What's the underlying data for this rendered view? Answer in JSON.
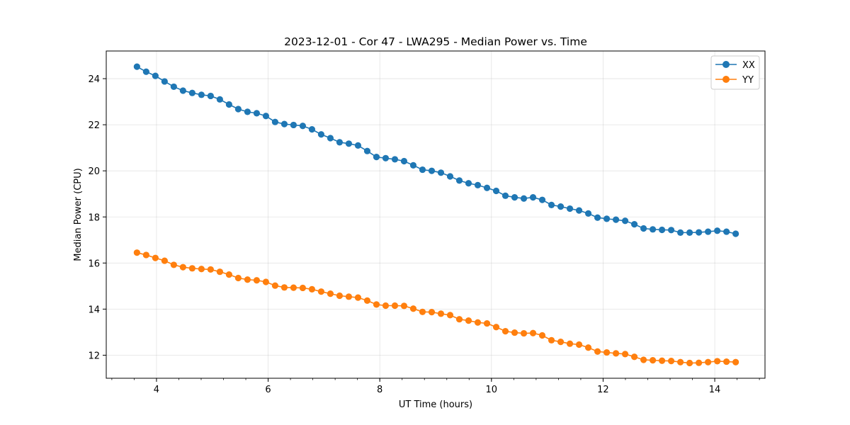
{
  "chart_data": {
    "type": "line",
    "title": "2023-12-01 - Cor 47 - LWA295 - Median Power vs. Time",
    "xlabel": "UT Time (hours)",
    "ylabel": "Median Power (CPU)",
    "xlim": [
      3.1,
      14.9
    ],
    "ylim": [
      11.0,
      25.2
    ],
    "xticks": [
      4,
      6,
      8,
      10,
      12,
      14
    ],
    "yticks": [
      12,
      14,
      16,
      18,
      20,
      22,
      24
    ],
    "x_minor_step": 0.4,
    "grid": true,
    "legend_position": "top-right",
    "x": [
      3.65,
      3.815,
      3.98,
      4.145,
      4.31,
      4.475,
      4.64,
      4.805,
      4.97,
      5.135,
      5.3,
      5.465,
      5.63,
      5.795,
      5.96,
      6.125,
      6.29,
      6.455,
      6.62,
      6.785,
      6.95,
      7.115,
      7.28,
      7.445,
      7.61,
      7.775,
      7.94,
      8.105,
      8.27,
      8.435,
      8.6,
      8.765,
      8.93,
      9.095,
      9.26,
      9.425,
      9.59,
      9.755,
      9.92,
      10.085,
      10.25,
      10.415,
      10.58,
      10.745,
      10.91,
      11.075,
      11.24,
      11.405,
      11.57,
      11.735,
      11.9,
      12.065,
      12.23,
      12.395,
      12.56,
      12.725,
      12.89,
      13.055,
      13.22,
      13.385,
      13.55,
      13.715,
      13.88,
      14.045,
      14.21,
      14.375
    ],
    "series": [
      {
        "name": "XX",
        "color": "#1f77b4",
        "values": [
          24.52,
          24.3,
          24.12,
          23.88,
          23.65,
          23.48,
          23.38,
          23.3,
          23.25,
          23.1,
          22.88,
          22.68,
          22.56,
          22.5,
          22.38,
          22.12,
          22.03,
          21.99,
          21.95,
          21.8,
          21.58,
          21.42,
          21.24,
          21.18,
          21.1,
          20.86,
          20.6,
          20.55,
          20.5,
          20.42,
          20.24,
          20.05,
          20.0,
          19.92,
          19.76,
          19.58,
          19.46,
          19.38,
          19.26,
          19.13,
          18.92,
          18.85,
          18.8,
          18.85,
          18.74,
          18.52,
          18.45,
          18.36,
          18.28,
          18.15,
          17.97,
          17.92,
          17.88,
          17.83,
          17.68,
          17.5,
          17.46,
          17.44,
          17.43,
          17.32,
          17.32,
          17.33,
          17.36,
          17.4,
          17.36,
          17.27
        ]
      },
      {
        "name": "YY",
        "color": "#ff7f0e",
        "values": [
          16.45,
          16.35,
          16.22,
          16.1,
          15.92,
          15.82,
          15.77,
          15.74,
          15.72,
          15.62,
          15.5,
          15.35,
          15.28,
          15.25,
          15.18,
          15.02,
          14.94,
          14.93,
          14.92,
          14.86,
          14.76,
          14.67,
          14.58,
          14.54,
          14.5,
          14.37,
          14.2,
          14.15,
          14.15,
          14.14,
          14.02,
          13.88,
          13.87,
          13.8,
          13.74,
          13.56,
          13.5,
          13.42,
          13.38,
          13.22,
          13.04,
          12.98,
          12.95,
          12.96,
          12.86,
          12.65,
          12.58,
          12.5,
          12.46,
          12.33,
          12.16,
          12.12,
          12.08,
          12.05,
          11.93,
          11.8,
          11.78,
          11.76,
          11.75,
          11.7,
          11.66,
          11.67,
          11.7,
          11.74,
          11.72,
          11.7
        ]
      }
    ]
  }
}
